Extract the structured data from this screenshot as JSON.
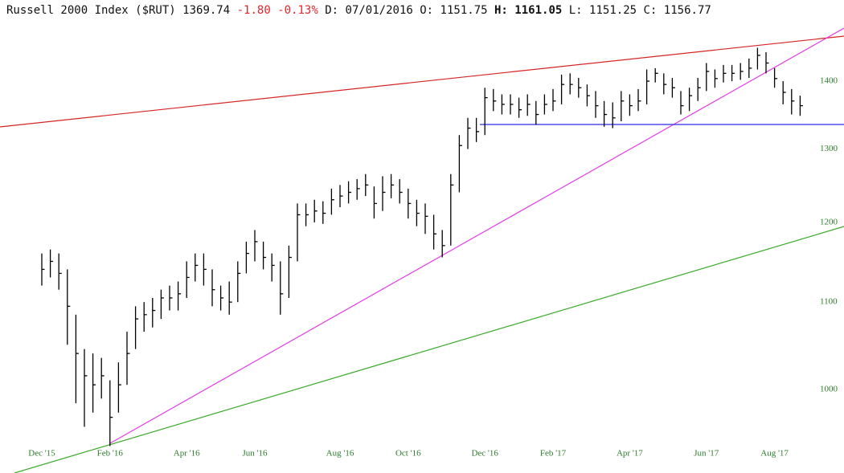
{
  "header": {
    "title": "Russell 2000 Index ($RUT)",
    "last": "1369.74",
    "change": "-1.80",
    "change_pct": "-0.13%",
    "fields": [
      {
        "label": "D:",
        "value": "07/01/2016"
      },
      {
        "label": "O:",
        "value": "1151.75"
      },
      {
        "label": "H:",
        "value": "1161.05"
      },
      {
        "label": "L:",
        "value": "1151.25"
      },
      {
        "label": "C:",
        "value": "1156.77"
      }
    ]
  },
  "chart_data": {
    "type": "ohlc",
    "log_scale": true,
    "color": "#000000",
    "categories": [
      "Dec '15",
      null,
      null,
      null,
      null,
      null,
      null,
      null,
      "Feb '16",
      null,
      null,
      null,
      null,
      null,
      null,
      null,
      null,
      "Apr '16",
      null,
      null,
      null,
      null,
      null,
      null,
      null,
      "Jun '16",
      null,
      null,
      null,
      null,
      null,
      null,
      null,
      null,
      null,
      "Aug '16",
      null,
      null,
      null,
      null,
      null,
      null,
      null,
      "Oct '16",
      null,
      null,
      null,
      null,
      null,
      null,
      null,
      null,
      "Dec '16",
      null,
      null,
      null,
      null,
      null,
      null,
      null,
      "Feb '17",
      null,
      null,
      null,
      null,
      null,
      null,
      null,
      null,
      "Apr '17",
      null,
      null,
      null,
      null,
      null,
      null,
      null,
      null,
      "Jun '17",
      null,
      null,
      null,
      null,
      null,
      null,
      null,
      "Aug '17",
      null,
      null,
      null
    ],
    "high": [
      1160,
      1165,
      1160,
      1140,
      1085,
      1045,
      1040,
      1035,
      1010,
      1030,
      1065,
      1095,
      1100,
      1105,
      1115,
      1120,
      1125,
      1150,
      1160,
      1160,
      1140,
      1120,
      1125,
      1150,
      1175,
      1190,
      1175,
      1160,
      1150,
      1170,
      1225,
      1225,
      1230,
      1228,
      1245,
      1250,
      1255,
      1258,
      1265,
      1248,
      1262,
      1265,
      1258,
      1245,
      1230,
      1225,
      1210,
      1190,
      1265,
      1320,
      1345,
      1345,
      1390,
      1388,
      1380,
      1380,
      1375,
      1380,
      1370,
      1380,
      1388,
      1410,
      1412,
      1405,
      1395,
      1385,
      1370,
      1368,
      1385,
      1380,
      1388,
      1418,
      1420,
      1412,
      1405,
      1385,
      1390,
      1405,
      1428,
      1418,
      1425,
      1425,
      1428,
      1435,
      1452,
      1445,
      1420,
      1400,
      1388,
      1378
    ],
    "low": [
      1120,
      1130,
      1115,
      1050,
      985,
      960,
      975,
      990,
      940,
      975,
      1005,
      1045,
      1065,
      1070,
      1080,
      1090,
      1090,
      1105,
      1125,
      1120,
      1095,
      1090,
      1085,
      1100,
      1135,
      1150,
      1140,
      1125,
      1085,
      1105,
      1150,
      1195,
      1200,
      1198,
      1210,
      1220,
      1225,
      1230,
      1235,
      1205,
      1215,
      1232,
      1225,
      1205,
      1195,
      1185,
      1165,
      1155,
      1170,
      1240,
      1300,
      1310,
      1320,
      1355,
      1350,
      1350,
      1345,
      1348,
      1335,
      1350,
      1355,
      1365,
      1380,
      1375,
      1362,
      1345,
      1332,
      1330,
      1340,
      1348,
      1355,
      1365,
      1398,
      1380,
      1375,
      1350,
      1355,
      1370,
      1385,
      1390,
      1398,
      1400,
      1402,
      1405,
      1418,
      1412,
      1390,
      1365,
      1350,
      1348
    ],
    "close": [
      1140,
      1150,
      1135,
      1095,
      1040,
      1015,
      1005,
      1015,
      970,
      1005,
      1040,
      1080,
      1085,
      1090,
      1105,
      1105,
      1110,
      1130,
      1145,
      1140,
      1115,
      1105,
      1100,
      1135,
      1160,
      1175,
      1155,
      1145,
      1110,
      1155,
      1210,
      1210,
      1215,
      1212,
      1230,
      1235,
      1240,
      1245,
      1250,
      1225,
      1240,
      1250,
      1240,
      1225,
      1212,
      1208,
      1185,
      1170,
      1250,
      1305,
      1330,
      1325,
      1375,
      1370,
      1365,
      1365,
      1357,
      1365,
      1350,
      1365,
      1370,
      1395,
      1395,
      1390,
      1378,
      1363,
      1350,
      1345,
      1370,
      1363,
      1370,
      1400,
      1412,
      1395,
      1390,
      1363,
      1378,
      1390,
      1415,
      1404,
      1412,
      1412,
      1415,
      1420,
      1440,
      1428,
      1404,
      1383,
      1370,
      1363
    ],
    "ylim": [
      920,
      1490
    ],
    "yticks": [
      1000,
      1100,
      1200,
      1300,
      1400
    ]
  }
}
